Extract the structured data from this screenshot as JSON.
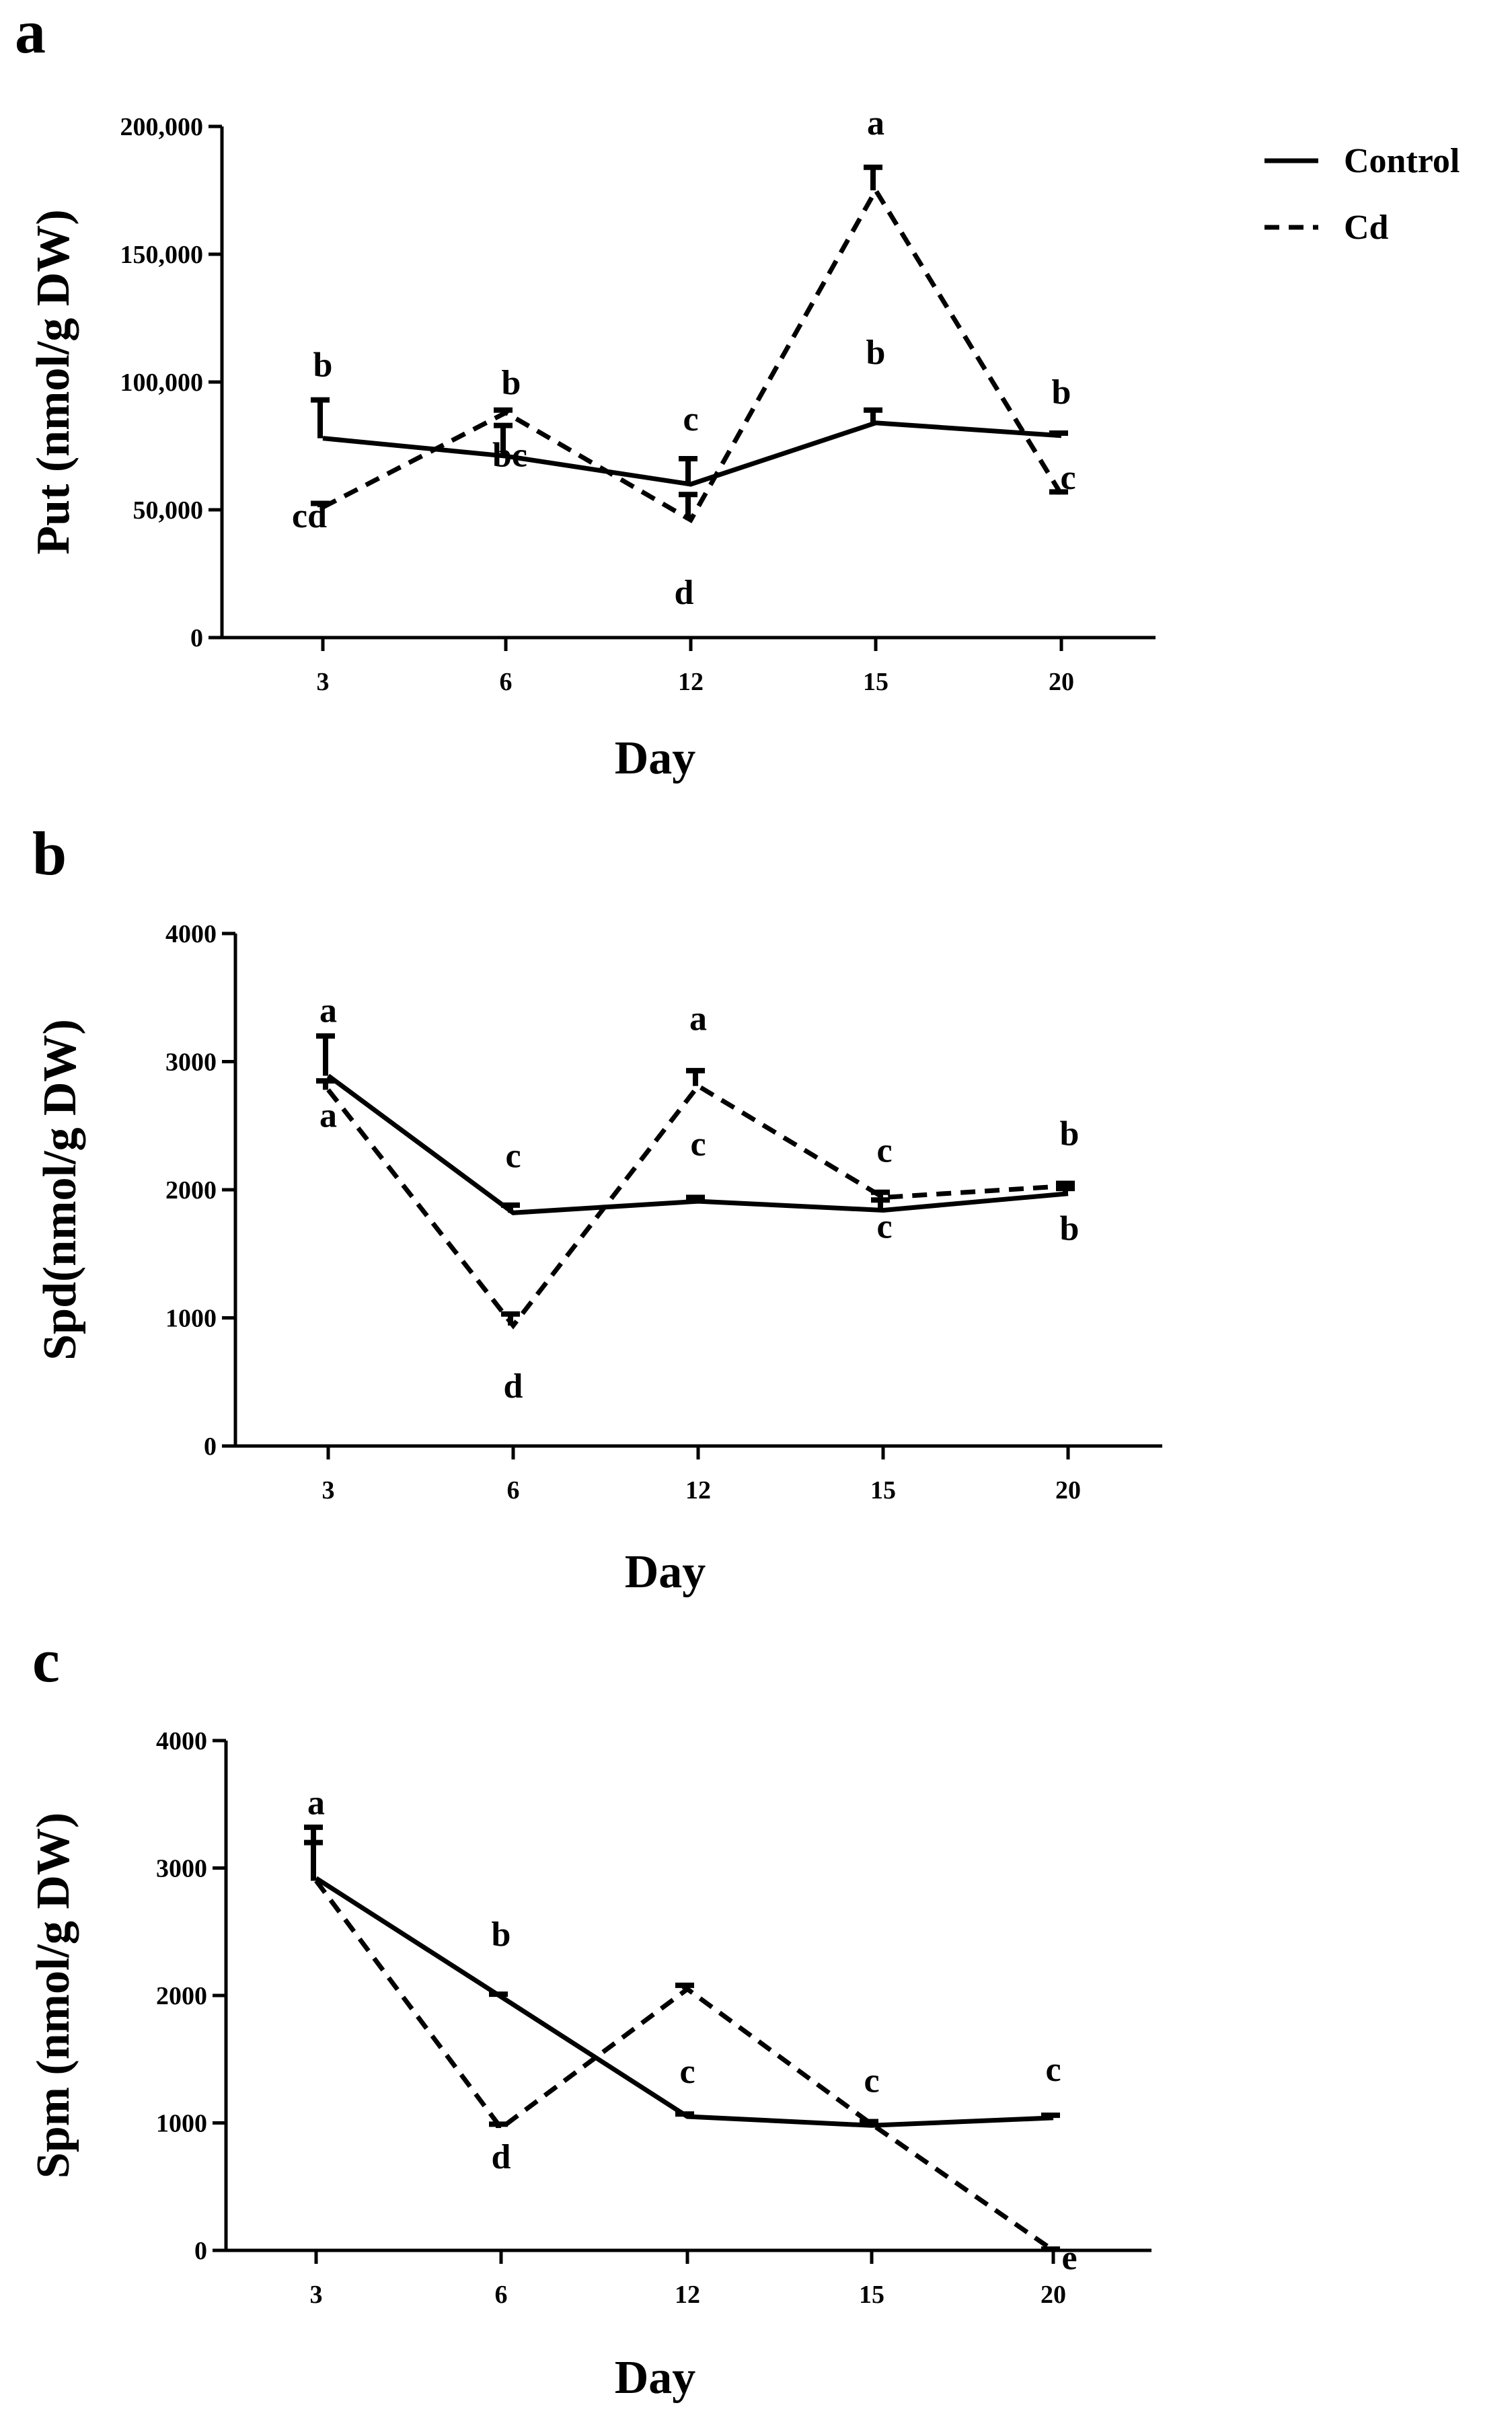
{
  "legend": {
    "entries": [
      {
        "label": "Control",
        "style": "solid"
      },
      {
        "label": "Cd",
        "style": "dashed"
      }
    ]
  },
  "chart_data": [
    {
      "panel": "a",
      "type": "line",
      "title": "",
      "xlabel": "Day",
      "ylabel": "Put (nmol/g DW)",
      "categories": [
        "3",
        "6",
        "12",
        "15",
        "20"
      ],
      "ylim": [
        0,
        200000
      ],
      "yticks": [
        0,
        50000,
        100000,
        150000,
        200000
      ],
      "ytick_labels": [
        "0",
        "50,000",
        "100,000",
        "150,000",
        "200,000"
      ],
      "series": [
        {
          "name": "Control",
          "style": "solid",
          "values": [
            78000,
            71000,
            60000,
            84000,
            79000
          ],
          "errors": [
            15000,
            12000,
            10000,
            5000,
            1000
          ],
          "sig": [
            "b",
            "b",
            "c",
            "b",
            "b"
          ]
        },
        {
          "name": "Cd",
          "style": "dashed",
          "values": [
            51000,
            88000,
            46000,
            175000,
            56000
          ],
          "errors": [
            1500,
            1000,
            10000,
            9000,
            1000
          ],
          "sig": [
            "cd",
            "bc",
            "d",
            "a",
            "c"
          ]
        }
      ]
    },
    {
      "panel": "b",
      "type": "line",
      "title": "",
      "xlabel": "Day",
      "ylabel": "Spd(nmol/g DW)",
      "categories": [
        "3",
        "6",
        "12",
        "15",
        "20"
      ],
      "ylim": [
        0,
        4000
      ],
      "yticks": [
        0,
        1000,
        2000,
        3000,
        4000
      ],
      "ytick_labels": [
        "0",
        "1000",
        "2000",
        "3000",
        "4000"
      ],
      "series": [
        {
          "name": "Control",
          "style": "solid",
          "values": [
            2890,
            1820,
            1910,
            1840,
            1970
          ],
          "errors": [
            310,
            60,
            30,
            80,
            40
          ],
          "sig": [
            "a",
            "c",
            "c",
            "c",
            "b"
          ]
        },
        {
          "name": "Cd",
          "style": "dashed",
          "values": [
            2780,
            940,
            2810,
            1940,
            2030
          ],
          "errors": [
            70,
            90,
            120,
            40,
            20
          ],
          "sig": [
            "a",
            "d",
            "a",
            "c",
            "b"
          ]
        }
      ]
    },
    {
      "panel": "c",
      "type": "line",
      "title": "",
      "xlabel": "Day",
      "ylabel": "Spm (nmol/g DW)",
      "categories": [
        "3",
        "6",
        "12",
        "15",
        "20"
      ],
      "ylim": [
        0,
        4000
      ],
      "yticks": [
        0,
        1000,
        2000,
        3000,
        4000
      ],
      "ytick_labels": [
        "0",
        "1000",
        "2000",
        "3000",
        "4000"
      ],
      "series": [
        {
          "name": "Control",
          "style": "solid",
          "values": [
            2920,
            1990,
            1050,
            980,
            1040
          ],
          "errors": [
            400,
            20,
            20,
            30,
            20
          ],
          "sig": [
            "a",
            "b",
            "c",
            "c",
            "c"
          ]
        },
        {
          "name": "Cd",
          "style": "dashed",
          "values": [
            2900,
            960,
            2050,
            990,
            0
          ],
          "errors": [
            300,
            30,
            30,
            20,
            10
          ],
          "sig": [
            "",
            "d",
            "",
            "",
            "e"
          ]
        }
      ]
    }
  ]
}
